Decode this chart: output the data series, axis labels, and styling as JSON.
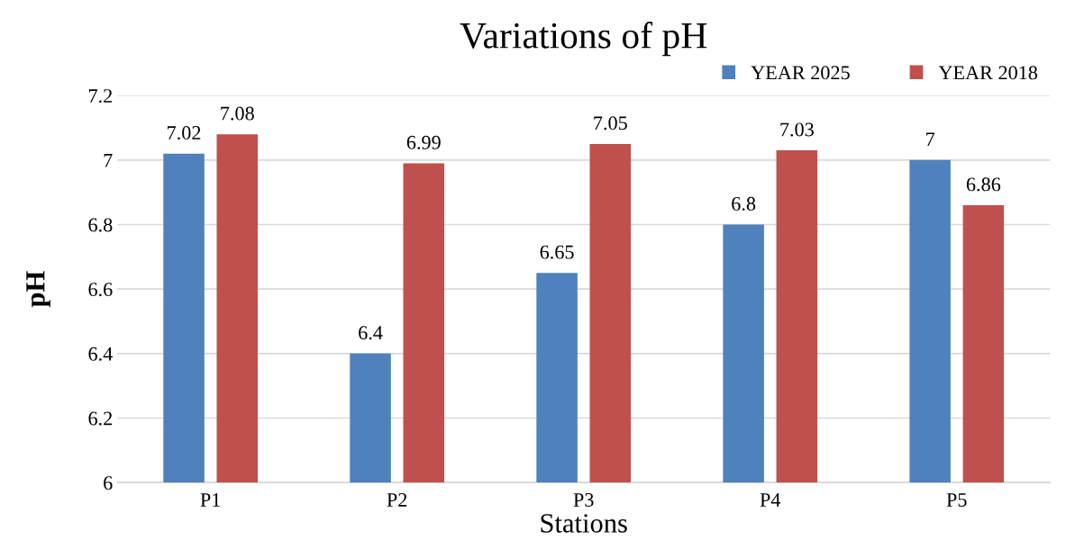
{
  "chart_data": {
    "type": "bar",
    "title": "Variations of pH",
    "xlabel": "Stations",
    "ylabel": "pH",
    "categories": [
      "P1",
      "P2",
      "P3",
      "P4",
      "P5"
    ],
    "series": [
      {
        "name": "YEAR 2025",
        "color": "#4f81bd",
        "values": [
          7.02,
          6.4,
          6.65,
          6.8,
          7
        ]
      },
      {
        "name": "YEAR 2018",
        "color": "#c0504d",
        "values": [
          7.08,
          6.99,
          7.05,
          7.03,
          6.86
        ]
      }
    ],
    "ylim": [
      6,
      7.2
    ],
    "yticks": [
      6,
      6.2,
      6.4,
      6.6,
      6.8,
      7,
      7.2
    ],
    "grid": "y",
    "legend": "top right",
    "data_labels": true
  }
}
